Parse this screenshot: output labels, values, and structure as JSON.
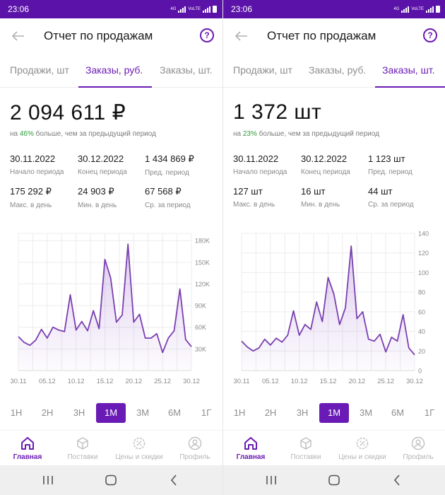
{
  "colors": {
    "accent": "#6a1bb5",
    "status_bar": "#5b12a8",
    "positive": "#2e9c3d",
    "line": "#7a3fb0"
  },
  "screens": [
    {
      "status": {
        "time": "23:06",
        "net1": "4G",
        "net2": "VoLTE"
      },
      "title": "Отчет по продажам",
      "help_label": "?",
      "tabs": [
        "Продажи, шт",
        "Заказы, руб.",
        "Заказы, шт."
      ],
      "active_tab": 1,
      "big_value": "2 094 611  ₽",
      "compare": {
        "prefix": "на ",
        "percent": "46%",
        "suffix": " больше, чем за предыдущий период"
      },
      "stats": [
        {
          "value": "30.11.2022",
          "label": "Начало периода"
        },
        {
          "value": "30.12.2022",
          "label": "Конец периода"
        },
        {
          "value": "1 434 869 ₽",
          "label": "Пред. период"
        },
        {
          "value": "175 292 ₽",
          "label": "Макс. в день"
        },
        {
          "value": "24 903 ₽",
          "label": "Мин. в день"
        },
        {
          "value": "67 568 ₽",
          "label": "Ср. за период"
        }
      ],
      "chart_data": {
        "type": "area",
        "x_ticks": [
          "30.11",
          "05.12",
          "10.12",
          "15.12",
          "20.12",
          "25.12",
          "30.12"
        ],
        "y_ticks": [
          "30K",
          "60K",
          "90K",
          "120K",
          "150K",
          "180K"
        ],
        "ylim": [
          0,
          190000
        ],
        "grid": true,
        "series": [
          {
            "values": [
              47000,
              39000,
              35000,
              42000,
              57000,
              45000,
              60000,
              56000,
              54000,
              105000,
              56000,
              68000,
              55000,
              83000,
              58000,
              154000,
              128000,
              67000,
              77000,
              175000,
              67000,
              78000,
              45000,
              45000,
              51000,
              25000,
              45000,
              55000,
              113000,
              43000,
              33000
            ]
          }
        ]
      },
      "periods": [
        "1Н",
        "2Н",
        "3Н",
        "1М",
        "3М",
        "6М",
        "1Г"
      ],
      "active_period": 3,
      "nav": [
        "Главная",
        "Поставки",
        "Цены и скидки",
        "Профиль"
      ],
      "active_nav": 0
    },
    {
      "status": {
        "time": "23:06",
        "net1": "4G",
        "net2": "VoLTE"
      },
      "title": "Отчет по продажам",
      "help_label": "?",
      "tabs": [
        "Продажи, шт",
        "Заказы, руб.",
        "Заказы, шт."
      ],
      "active_tab": 2,
      "big_value": "1 372 шт",
      "compare": {
        "prefix": "на ",
        "percent": "23%",
        "suffix": " больше, чем за предыдущий период"
      },
      "stats": [
        {
          "value": "30.11.2022",
          "label": "Начало периода"
        },
        {
          "value": "30.12.2022",
          "label": "Конец периода"
        },
        {
          "value": "1 123 шт",
          "label": "Пред. период"
        },
        {
          "value": "127 шт",
          "label": "Макс. в день"
        },
        {
          "value": "16 шт",
          "label": "Мин. в день"
        },
        {
          "value": "44 шт",
          "label": "Ср. за период"
        }
      ],
      "chart_data": {
        "type": "area",
        "x_ticks": [
          "30.11",
          "05.12",
          "10.12",
          "15.12",
          "20.12",
          "25.12",
          "30.12"
        ],
        "y_ticks": [
          "0",
          "20",
          "40",
          "60",
          "80",
          "100",
          "120",
          "140"
        ],
        "ylim": [
          0,
          140
        ],
        "grid": true,
        "series": [
          {
            "values": [
              30,
              24,
              20,
              23,
              32,
              26,
              33,
              29,
              36,
              61,
              36,
              47,
              42,
              70,
              50,
              95,
              78,
              47,
              64,
              127,
              53,
              60,
              32,
              30,
              37,
              19,
              34,
              30,
              57,
              23,
              16
            ]
          }
        ]
      },
      "periods": [
        "1Н",
        "2Н",
        "3Н",
        "1М",
        "3М",
        "6М",
        "1Г"
      ],
      "active_period": 3,
      "nav": [
        "Главная",
        "Поставки",
        "Цены и скидки",
        "Профиль"
      ],
      "active_nav": 0
    }
  ]
}
